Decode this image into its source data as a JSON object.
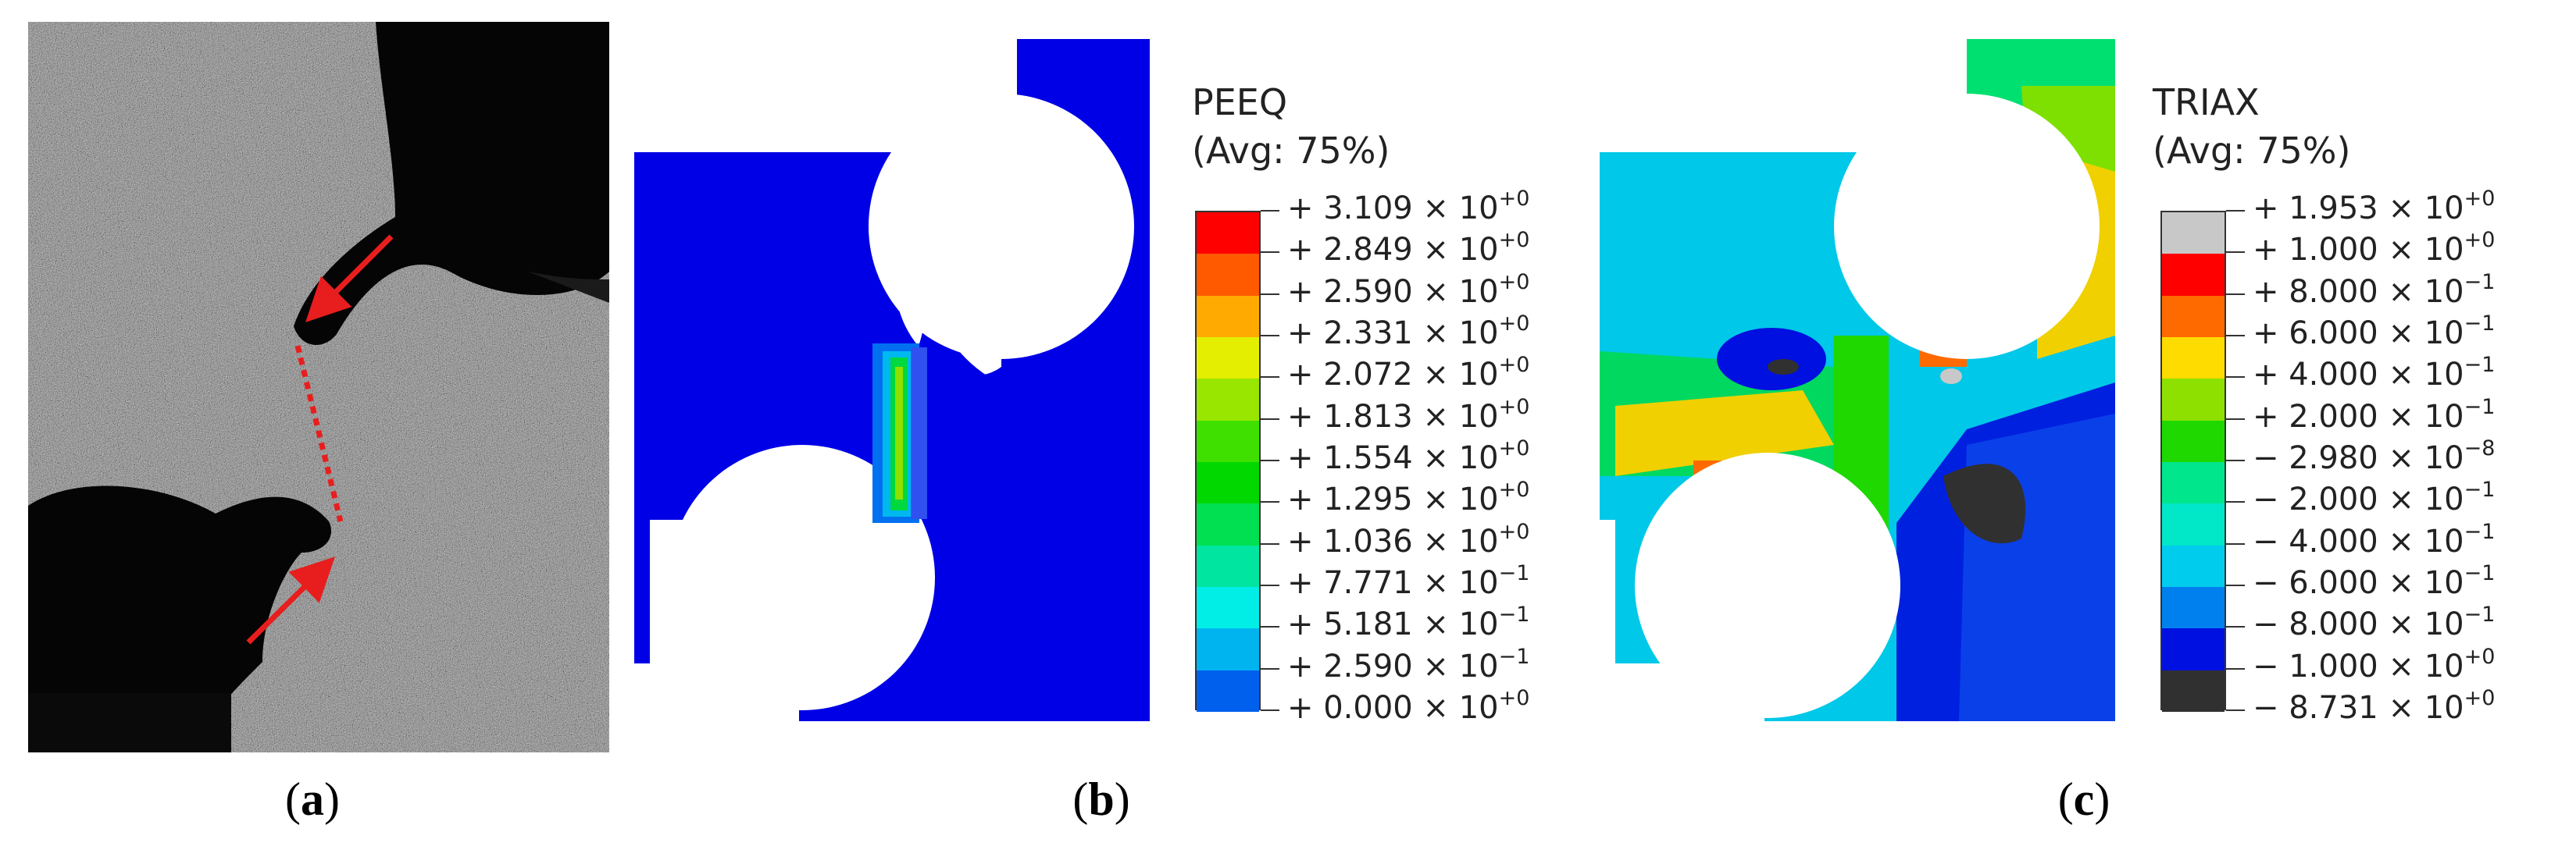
{
  "captions": {
    "a": "a",
    "b": "b",
    "c": "c"
  },
  "panel_b": {
    "legend_title_line1": "PEEQ",
    "legend_title_line2": "(Avg: 75%)",
    "levels": [
      {
        "sign": "+",
        "mant": "3.109",
        "exp": "+0",
        "color": "#ff0000"
      },
      {
        "sign": "+",
        "mant": "2.849",
        "exp": "+0",
        "color": "#ff5a00"
      },
      {
        "sign": "+",
        "mant": "2.590",
        "exp": "+0",
        "color": "#ffaa00"
      },
      {
        "sign": "+",
        "mant": "2.331",
        "exp": "+0",
        "color": "#e4ee00"
      },
      {
        "sign": "+",
        "mant": "2.072",
        "exp": "+0",
        "color": "#99e600"
      },
      {
        "sign": "+",
        "mant": "1.813",
        "exp": "+0",
        "color": "#3fe000"
      },
      {
        "sign": "+",
        "mant": "1.554",
        "exp": "+0",
        "color": "#00d800"
      },
      {
        "sign": "+",
        "mant": "1.295",
        "exp": "+0",
        "color": "#00e050"
      },
      {
        "sign": "+",
        "mant": "1.036",
        "exp": "+0",
        "color": "#00e6a0"
      },
      {
        "sign": "+",
        "mant": "7.771",
        "exp": "−1",
        "color": "#00eee6"
      },
      {
        "sign": "+",
        "mant": "5.181",
        "exp": "−1",
        "color": "#00b4f0"
      },
      {
        "sign": "+",
        "mant": "2.590",
        "exp": "−1",
        "color": "#0060ee"
      },
      {
        "sign": "+",
        "mant": "0.000",
        "exp": "+0",
        "color": "#0000e8"
      }
    ]
  },
  "panel_c": {
    "legend_title_line1": "TRIAX",
    "legend_title_line2": "(Avg: 75%)",
    "levels": [
      {
        "sign": "+",
        "mant": "1.953",
        "exp": "+0",
        "color": "#c8c8c8"
      },
      {
        "sign": "+",
        "mant": "1.000",
        "exp": "+0",
        "color": "#ff0000"
      },
      {
        "sign": "+",
        "mant": "8.000",
        "exp": "−1",
        "color": "#ff6a00"
      },
      {
        "sign": "+",
        "mant": "6.000",
        "exp": "−1",
        "color": "#ffdc00"
      },
      {
        "sign": "+",
        "mant": "4.000",
        "exp": "−1",
        "color": "#8ee000"
      },
      {
        "sign": "+",
        "mant": "2.000",
        "exp": "−1",
        "color": "#1ed800"
      },
      {
        "sign": "−",
        "mant": "2.980",
        "exp": "−8",
        "color": "#00e68c"
      },
      {
        "sign": "−",
        "mant": "2.000",
        "exp": "−1",
        "color": "#00e8c8"
      },
      {
        "sign": "−",
        "mant": "4.000",
        "exp": "−1",
        "color": "#00ccee"
      },
      {
        "sign": "−",
        "mant": "6.000",
        "exp": "−1",
        "color": "#0080ee"
      },
      {
        "sign": "−",
        "mant": "8.000",
        "exp": "−1",
        "color": "#0010e0"
      },
      {
        "sign": "−",
        "mant": "1.000",
        "exp": "+0",
        "color": "#303030"
      },
      {
        "sign": "−",
        "mant": "8.731",
        "exp": "+0",
        "color": "#303030"
      }
    ]
  }
}
